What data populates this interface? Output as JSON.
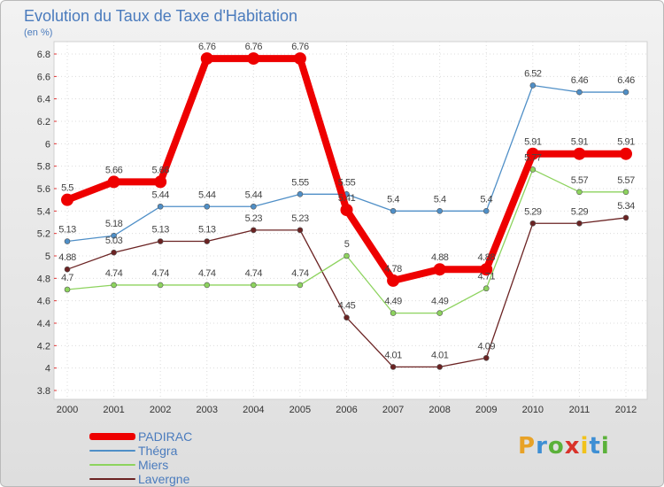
{
  "header": {
    "title": "Evolution du Taux de Taxe d'Habitation",
    "unit": "(en %)"
  },
  "brand": {
    "letters": [
      "P",
      "r",
      "o",
      "x",
      "i",
      "t",
      "i"
    ],
    "colors": [
      "#e8a227",
      "#3e8fd4",
      "#5bb13a",
      "#d9322a",
      "#f1c21b",
      "#3e8fd4",
      "#5bb13a"
    ]
  },
  "chart_data": {
    "type": "line",
    "title": "Evolution du Taux de Taxe d'Habitation",
    "ylabel": "(en %)",
    "xlabel": "",
    "x": [
      "2000",
      "2001",
      "2002",
      "2003",
      "2004",
      "2005",
      "2006",
      "2007",
      "2008",
      "2009",
      "2010",
      "2011",
      "2012"
    ],
    "ylim": [
      3.8,
      6.8
    ],
    "yticks": [
      "3.8",
      "4",
      "4.2",
      "4.4",
      "4.6",
      "4.8",
      "5",
      "5.2",
      "5.4",
      "5.6",
      "5.8",
      "6",
      "6.2",
      "6.4",
      "6.6",
      "6.8"
    ],
    "grid": true,
    "legend_position": "bottom-left",
    "series": [
      {
        "name": "PADIRAC",
        "color": "#ee0000",
        "values": [
          5.5,
          5.66,
          5.66,
          6.76,
          6.76,
          6.76,
          5.41,
          4.78,
          4.88,
          4.88,
          5.91,
          5.91,
          5.91
        ],
        "labels": [
          "5.5",
          "5.66",
          "5.66",
          "6.76",
          "6.76",
          "6.76",
          "5.41",
          "4.78",
          "4.88",
          "4.88",
          "5.91",
          "5.91",
          "5.91"
        ]
      },
      {
        "name": "Thégra",
        "color": "#4f8fc7",
        "values": [
          5.13,
          5.18,
          5.44,
          5.44,
          5.44,
          5.55,
          5.55,
          5.4,
          5.4,
          5.4,
          6.52,
          6.46,
          6.46
        ],
        "labels": [
          "5.13",
          "5.18",
          "5.44",
          "5.44",
          "5.44",
          "5.55",
          "5.55",
          "5.4",
          "5.4",
          "5.4",
          "6.52",
          "6.46",
          "6.46"
        ]
      },
      {
        "name": "Miers",
        "color": "#8dd35e",
        "values": [
          4.7,
          4.74,
          4.74,
          4.74,
          4.74,
          4.74,
          5.0,
          4.49,
          4.49,
          4.71,
          5.77,
          5.57,
          5.57
        ],
        "labels": [
          "4.7",
          "4.74",
          "4.74",
          "4.74",
          "4.74",
          "4.74",
          "5",
          "4.49",
          "4.49",
          "4.71",
          "5.77",
          "5.57",
          "5.57"
        ]
      },
      {
        "name": "Lavergne",
        "color": "#6b2323",
        "values": [
          4.88,
          5.03,
          5.13,
          5.13,
          5.23,
          5.23,
          4.45,
          4.01,
          4.01,
          4.09,
          5.29,
          5.29,
          5.34
        ],
        "labels": [
          "4.88",
          "5.03",
          "5.13",
          "5.13",
          "5.23",
          "5.23",
          "4.45",
          "4.01",
          "4.01",
          "4.09",
          "5.29",
          "5.29",
          "5.34"
        ]
      }
    ]
  }
}
